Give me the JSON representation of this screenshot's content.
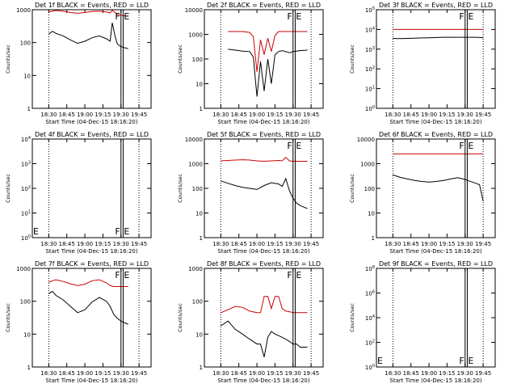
{
  "figure": {
    "xlabel": "Start Time (04-Dec-15 18:16:20)",
    "ylabel": "Counts/sec",
    "x_ticks": [
      "18:30",
      "18:45",
      "19:00",
      "19:15",
      "19:30",
      "19:45"
    ],
    "marker_labels": [
      "F",
      "E"
    ],
    "colors": {
      "events": "#000000",
      "lld": "#cc0000",
      "axes": "#000000"
    }
  },
  "chart_data": [
    {
      "type": "line",
      "title": "Det 1f BLACK = Events, RED = LLD",
      "yscale": "log",
      "ylim": [
        1,
        1000
      ],
      "y_ticks": [
        "1",
        "10",
        "100",
        "1000"
      ],
      "x": [
        18.5,
        18.55,
        18.6,
        18.7,
        18.8,
        18.9,
        19.0,
        19.1,
        19.2,
        19.3,
        19.35,
        19.38,
        19.42,
        19.45,
        19.5,
        19.55,
        19.6
      ],
      "series": [
        {
          "name": "LLD",
          "color": "#cc0000",
          "values": [
            850,
            900,
            950,
            900,
            820,
            780,
            820,
            880,
            900,
            850,
            800,
            950,
            820,
            700,
            680,
            650,
            640
          ]
        },
        {
          "name": "Events",
          "color": "#000000",
          "values": [
            180,
            220,
            190,
            160,
            120,
            95,
            110,
            140,
            160,
            130,
            110,
            400,
            150,
            90,
            75,
            70,
            65
          ]
        }
      ]
    },
    {
      "type": "line",
      "title": "Det 2f BLACK = Events, RED = LLD",
      "yscale": "log",
      "ylim": [
        1,
        10000
      ],
      "y_ticks": [
        "1",
        "10",
        "100",
        "1000",
        "10000"
      ],
      "x": [
        18.6,
        18.7,
        18.8,
        18.9,
        18.95,
        19.0,
        19.05,
        19.1,
        19.15,
        19.2,
        19.25,
        19.3,
        19.35,
        19.4,
        19.45,
        19.5,
        19.55,
        19.6,
        19.7
      ],
      "series": [
        {
          "name": "LLD",
          "color": "#cc0000",
          "values": [
            1300,
            1300,
            1300,
            1200,
            800,
            30,
            600,
            150,
            700,
            200,
            900,
            1300,
            1300,
            1300,
            1300,
            1300,
            1300,
            1300,
            1300
          ]
        },
        {
          "name": "Events",
          "color": "#000000",
          "values": [
            250,
            230,
            210,
            200,
            120,
            3,
            80,
            5,
            100,
            10,
            150,
            200,
            220,
            200,
            180,
            200,
            210,
            220,
            230
          ]
        }
      ]
    },
    {
      "type": "line",
      "title": "Det 3f BLACK = Events, RED = LLD",
      "yscale": "log",
      "ylim": [
        1,
        100000
      ],
      "y_ticks": [
        "10^0",
        "10^1",
        "10^2",
        "10^3",
        "10^4",
        "10^5"
      ],
      "x": [
        18.5,
        18.6,
        18.7,
        18.8,
        18.9,
        19.0,
        19.1,
        19.2,
        19.3,
        19.4,
        19.5,
        19.55,
        19.6,
        19.65,
        19.7,
        19.75
      ],
      "series": [
        {
          "name": "LLD",
          "color": "#cc0000",
          "values": [
            10000,
            10000,
            10000,
            10000,
            10000,
            10000,
            10000,
            10000,
            10000,
            10000,
            10000,
            10000,
            10000,
            10000,
            10000,
            10000
          ]
        },
        {
          "name": "Events",
          "color": "#000000",
          "values": [
            3500,
            3400,
            3500,
            3600,
            3700,
            3800,
            3900,
            4000,
            4000,
            4000,
            4000,
            4000,
            4000,
            4000,
            3900,
            3800
          ]
        }
      ]
    },
    {
      "type": "line",
      "title": "Det 4f BLACK = Events, RED = LLD",
      "yscale": "log",
      "ylim": [
        1,
        10000
      ],
      "y_ticks": [
        "10^0",
        "10^1",
        "10^2",
        "10^3",
        "10^4"
      ],
      "x": [],
      "series": []
    },
    {
      "type": "line",
      "title": "Det 5f BLACK = Events, RED = LLD",
      "yscale": "log",
      "ylim": [
        1,
        10000
      ],
      "y_ticks": [
        "1",
        "10",
        "100",
        "1000",
        "10000"
      ],
      "x": [
        18.5,
        18.6,
        18.7,
        18.8,
        18.9,
        19.0,
        19.1,
        19.2,
        19.3,
        19.35,
        19.4,
        19.45,
        19.5,
        19.55,
        19.6,
        19.7
      ],
      "series": [
        {
          "name": "LLD",
          "color": "#cc0000",
          "values": [
            1300,
            1350,
            1400,
            1450,
            1400,
            1300,
            1250,
            1300,
            1350,
            1300,
            1800,
            1300,
            1250,
            1250,
            1250,
            1250
          ]
        },
        {
          "name": "Events",
          "color": "#000000",
          "values": [
            200,
            160,
            130,
            110,
            100,
            90,
            130,
            170,
            150,
            120,
            250,
            80,
            40,
            25,
            20,
            15
          ]
        }
      ]
    },
    {
      "type": "line",
      "title": "Det 6f BLACK = Events, RED = LLD",
      "yscale": "log",
      "ylim": [
        1,
        10000
      ],
      "y_ticks": [
        "1",
        "10",
        "100",
        "1000",
        "10000"
      ],
      "x": [
        18.5,
        18.6,
        18.7,
        18.8,
        18.9,
        19.0,
        19.1,
        19.2,
        19.3,
        19.4,
        19.5,
        19.55,
        19.6,
        19.65,
        19.7,
        19.75
      ],
      "series": [
        {
          "name": "LLD",
          "color": "#cc0000",
          "values": [
            2500,
            2500,
            2500,
            2500,
            2500,
            2500,
            2500,
            2500,
            2500,
            2500,
            2500,
            2500,
            2500,
            2500,
            2500,
            2500
          ]
        },
        {
          "name": "Events",
          "color": "#000000",
          "values": [
            350,
            280,
            240,
            210,
            190,
            180,
            190,
            210,
            240,
            270,
            230,
            200,
            180,
            160,
            140,
            30
          ]
        }
      ]
    },
    {
      "type": "line",
      "title": "Det 7f BLACK = Events, RED = LLD",
      "yscale": "log",
      "ylim": [
        1,
        1000
      ],
      "y_ticks": [
        "1",
        "10",
        "100",
        "1000"
      ],
      "x": [
        18.5,
        18.55,
        18.6,
        18.7,
        18.8,
        18.9,
        19.0,
        19.1,
        19.2,
        19.3,
        19.35,
        19.4,
        19.45,
        19.5,
        19.55,
        19.6
      ],
      "series": [
        {
          "name": "LLD",
          "color": "#cc0000",
          "values": [
            380,
            420,
            450,
            400,
            340,
            300,
            330,
            420,
            450,
            360,
            300,
            280,
            280,
            280,
            280,
            280
          ]
        },
        {
          "name": "Events",
          "color": "#000000",
          "values": [
            170,
            200,
            150,
            110,
            70,
            45,
            55,
            95,
            130,
            100,
            70,
            40,
            30,
            25,
            22,
            20
          ]
        }
      ]
    },
    {
      "type": "line",
      "title": "Det 8f BLACK = Events, RED = LLD",
      "yscale": "log",
      "ylim": [
        1,
        1000
      ],
      "y_ticks": [
        "1",
        "10",
        "100",
        "1000"
      ],
      "x": [
        18.5,
        18.6,
        18.7,
        18.8,
        18.9,
        19.0,
        19.05,
        19.1,
        19.15,
        19.2,
        19.25,
        19.3,
        19.35,
        19.4,
        19.45,
        19.5,
        19.55,
        19.6,
        19.7
      ],
      "series": [
        {
          "name": "LLD",
          "color": "#cc0000",
          "values": [
            45,
            55,
            70,
            65,
            50,
            45,
            45,
            140,
            140,
            60,
            140,
            140,
            60,
            50,
            48,
            45,
            45,
            45,
            45
          ]
        },
        {
          "name": "Events",
          "color": "#000000",
          "values": [
            18,
            25,
            14,
            10,
            7,
            5,
            5,
            2,
            8,
            12,
            10,
            9,
            8,
            7,
            6,
            5,
            5,
            4,
            4
          ]
        }
      ]
    },
    {
      "type": "line",
      "title": "Det 9f BLACK = Events, RED = LLD",
      "yscale": "log",
      "ylim": [
        1,
        100000000
      ],
      "y_ticks": [
        "10^0",
        "10^2",
        "10^4",
        "10^6",
        "10^8"
      ],
      "x": [],
      "series": []
    }
  ]
}
